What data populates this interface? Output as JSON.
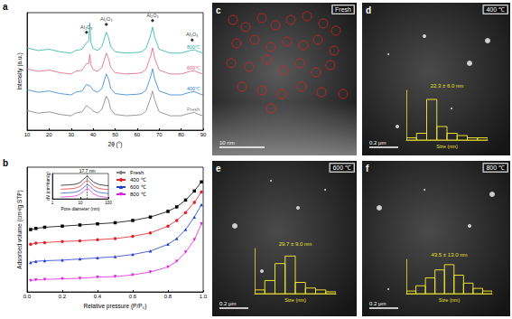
{
  "chart_data": [
    {
      "type": "line",
      "panel_label": "a",
      "x_label": "2θ (°)",
      "y_label": "Intensity (a.u.)",
      "x": [
        10,
        15,
        20,
        25,
        30,
        32,
        35,
        37,
        38,
        38.5,
        39,
        40,
        42,
        44,
        46,
        47,
        48,
        50,
        55,
        60,
        62,
        64,
        66,
        67,
        68,
        70,
        75,
        80,
        84,
        86,
        88,
        90
      ],
      "series": [
        {
          "name": "Fresh",
          "color": "#7f7f7f",
          "values": [
            1.5,
            1.3,
            1.4,
            1.2,
            1.1,
            1.3,
            1.4,
            1.9,
            1.75,
            1.7,
            1.65,
            1.45,
            1.3,
            1.6,
            2.6,
            2.3,
            1.6,
            1.2,
            1.1,
            1.15,
            1.2,
            1.45,
            2.4,
            3.0,
            2.3,
            1.4,
            1.1,
            1.1,
            1.3,
            1.35,
            1.2,
            1.1
          ]
        },
        {
          "name": "400℃",
          "color": "#2f7fd0",
          "values": [
            3.1,
            2.9,
            3.0,
            2.8,
            2.7,
            2.9,
            3.0,
            3.5,
            3.4,
            3.4,
            3.3,
            3.05,
            2.9,
            3.2,
            4.3,
            3.9,
            3.2,
            2.8,
            2.7,
            2.75,
            2.8,
            3.05,
            4.0,
            4.7,
            3.9,
            3.0,
            2.7,
            2.7,
            2.9,
            2.95,
            2.8,
            2.7
          ]
        },
        {
          "name": "600℃",
          "color": "#e0607f",
          "values": [
            4.7,
            4.5,
            4.6,
            4.4,
            4.3,
            4.5,
            4.6,
            5.1,
            5.1,
            5.8,
            5.0,
            4.65,
            4.5,
            4.8,
            5.9,
            5.5,
            4.8,
            4.4,
            4.3,
            4.35,
            4.4,
            4.65,
            5.6,
            6.3,
            5.5,
            4.6,
            4.3,
            4.3,
            4.5,
            4.55,
            4.4,
            4.3
          ]
        },
        {
          "name": "800℃",
          "color": "#2ab0a8",
          "values": [
            6.3,
            6.1,
            6.2,
            6.0,
            5.9,
            6.1,
            6.2,
            6.7,
            6.8,
            8.2,
            6.7,
            6.25,
            6.1,
            6.4,
            7.5,
            7.1,
            6.4,
            6.0,
            5.9,
            5.95,
            6.0,
            6.25,
            7.2,
            7.9,
            7.1,
            6.2,
            5.9,
            5.9,
            6.1,
            6.15,
            6.0,
            5.9
          ]
        }
      ],
      "annotations": [
        {
          "x": 37,
          "y": 7.5,
          "text": "Al₂O₃"
        },
        {
          "x": 46,
          "y": 8.1,
          "text": "Al₂O₃"
        },
        {
          "x": 67,
          "y": 8.4,
          "text": "Al₂O₃"
        },
        {
          "x": 85,
          "y": 6.9,
          "text": "Al₂O₃"
        }
      ],
      "xlim": [
        10,
        90
      ],
      "xticks": [
        10,
        20,
        30,
        40,
        50,
        60,
        70,
        80,
        90
      ],
      "ylim": [
        0,
        9
      ],
      "tick_labels": "x",
      "grid": false
    },
    {
      "type": "line",
      "panel_label": "b",
      "x_label": "Relative pressure (P/P₀)",
      "y_label": "Adsorbed volume (cm³/g STP)",
      "x": [
        0.02,
        0.05,
        0.1,
        0.2,
        0.3,
        0.4,
        0.5,
        0.6,
        0.7,
        0.8,
        0.85,
        0.9,
        0.95,
        0.99
      ],
      "series": [
        {
          "name": "Fresh",
          "color": "#000000",
          "marker": "square",
          "values": [
            5.5,
            5.6,
            5.7,
            5.8,
            5.9,
            6.0,
            6.1,
            6.3,
            6.6,
            7.1,
            7.5,
            8.1,
            8.9,
            9.7
          ]
        },
        {
          "name": "400 ℃",
          "color": "#e0202a",
          "marker": "circle",
          "values": [
            4.2,
            4.3,
            4.35,
            4.45,
            4.5,
            4.6,
            4.7,
            4.9,
            5.2,
            5.8,
            6.3,
            7.0,
            7.9,
            8.8
          ]
        },
        {
          "name": "600 ℃",
          "color": "#1f3fd0",
          "marker": "triangle",
          "values": [
            2.6,
            2.7,
            2.75,
            2.8,
            2.9,
            3.0,
            3.1,
            3.3,
            3.6,
            4.2,
            4.7,
            5.5,
            6.6,
            7.7
          ]
        },
        {
          "name": "800 ℃",
          "color": "#e020e0",
          "marker": "triangle-down",
          "values": [
            1.0,
            1.05,
            1.1,
            1.15,
            1.2,
            1.3,
            1.35,
            1.5,
            1.75,
            2.2,
            2.7,
            3.5,
            4.6,
            6.0
          ]
        }
      ],
      "xlim": [
        0,
        1
      ],
      "xticks": [
        {
          "value": 0,
          "label": "0.0"
        },
        0.2,
        0.4,
        0.6,
        0.8,
        {
          "value": 1,
          "label": "1.0"
        }
      ],
      "ylim": [
        0,
        11
      ],
      "tick_labels": "x",
      "grid": false,
      "legend": "top"
    },
    {
      "type": "line",
      "x_label": "Pore diameter (nm)",
      "y_label": "dV (cm³/nm/g)",
      "log": "x",
      "x": [
        2,
        4,
        6,
        8,
        10,
        13,
        17.7,
        22,
        30,
        45,
        70,
        100
      ],
      "series": [
        {
          "name": "Fresh",
          "color": "#000000",
          "values": [
            3.1,
            3.2,
            3.3,
            3.5,
            3.8,
            4.5,
            5.2,
            4.6,
            3.8,
            3.3,
            3.1,
            3.0
          ]
        },
        {
          "name": "400 ℃",
          "color": "#e0202a",
          "values": [
            2.2,
            2.3,
            2.4,
            2.6,
            2.9,
            3.6,
            4.3,
            3.8,
            2.9,
            2.4,
            2.2,
            2.1
          ]
        },
        {
          "name": "600 ℃",
          "color": "#1f3fd0",
          "values": [
            1.3,
            1.4,
            1.5,
            1.7,
            2.0,
            2.6,
            3.3,
            2.9,
            2.0,
            1.5,
            1.3,
            1.2
          ]
        },
        {
          "name": "800 ℃",
          "color": "#e020e0",
          "values": [
            0.4,
            0.5,
            0.6,
            0.8,
            1.1,
            1.7,
            2.4,
            2.0,
            1.1,
            0.6,
            0.4,
            0.3
          ]
        }
      ],
      "annotation": {
        "x": 17.7,
        "text": "17.7 nm"
      },
      "xlim": [
        1,
        100
      ],
      "xticks": [
        1,
        10,
        100
      ],
      "ylim": [
        0,
        5.8
      ],
      "tick_labels": "x"
    },
    {
      "type": "histogram",
      "x_label": "Size (nm)",
      "annotation": "22.3 ± 6.0 nm",
      "color": "#e8e030",
      "bins": [
        0,
        10,
        20,
        30,
        40,
        50,
        60,
        70,
        80
      ],
      "counts": [
        1,
        3,
        18,
        6,
        3,
        2,
        1,
        1
      ],
      "xlim": [
        0,
        80
      ],
      "ylim": [
        0,
        22
      ],
      "tick_labels": false
    },
    {
      "type": "histogram",
      "x_label": "Size (nm)",
      "annotation": "29.7 ± 9.0 nm",
      "color": "#e8e030",
      "bins": [
        0,
        10,
        20,
        30,
        40,
        50,
        60,
        70,
        80
      ],
      "counts": [
        2,
        7,
        16,
        20,
        6,
        3,
        2,
        1
      ],
      "xlim": [
        0,
        80
      ],
      "ylim": [
        0,
        24
      ],
      "tick_labels": false
    },
    {
      "type": "histogram",
      "x_label": "Size (nm)",
      "annotation": "43.5 ± 13.0 nm",
      "color": "#e8e030",
      "bins": [
        0,
        10,
        20,
        30,
        40,
        50,
        60,
        70,
        80,
        90
      ],
      "counts": [
        1,
        3,
        6,
        9,
        11,
        7,
        4,
        2,
        1
      ],
      "xlim": [
        0,
        90
      ],
      "ylim": [
        0,
        13
      ],
      "tick_labels": false
    }
  ],
  "images": [
    {
      "panel_label": "c",
      "title": "Fresh",
      "scale_bar": "10 nm"
    },
    {
      "panel_label": "d",
      "title": "400 ℃",
      "scale_bar": "0.2 μm"
    },
    {
      "panel_label": "e",
      "title": "600 ℃",
      "scale_bar": "0.2 μm"
    },
    {
      "panel_label": "f",
      "title": "800 ℃",
      "scale_bar": "0.2 μm"
    }
  ]
}
